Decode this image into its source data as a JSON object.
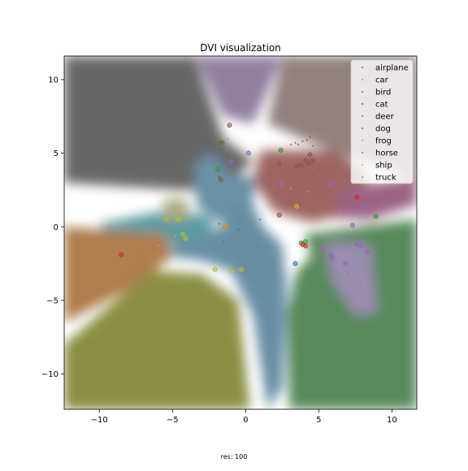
{
  "chart_data": {
    "type": "scatter",
    "title": "DVI visualization",
    "footer": "res: 100",
    "xlim": [
      -12.4,
      11.7
    ],
    "ylim": [
      -12.4,
      11.6
    ],
    "xticks": [
      -10,
      -5,
      0,
      5,
      10
    ],
    "yticks": [
      10,
      5,
      0,
      -5,
      -10
    ],
    "grid": false,
    "legend_position": "top-right",
    "series": [
      {
        "name": "airplane",
        "color": "#1f77b4",
        "points": [
          [
            1.0,
            0.5
          ],
          [
            -1.5,
            -1.0
          ],
          [
            -1.8,
            0.2
          ],
          [
            3.4,
            -2.5
          ],
          [
            -0.5,
            -0.2
          ]
        ],
        "highlighted": [
          [
            3.4,
            -2.5
          ]
        ]
      },
      {
        "name": "car",
        "color": "#ff7f0e",
        "points": [
          [
            -1.4,
            0.0
          ],
          [
            -0.6,
            -0.7
          ]
        ],
        "highlighted": [
          [
            -1.4,
            0.0
          ]
        ]
      },
      {
        "name": "bird",
        "color": "#2ca02c",
        "points": [
          [
            -1.6,
            5.7
          ],
          [
            -1.9,
            3.9
          ],
          [
            2.4,
            5.2
          ],
          [
            3.8,
            -1.1
          ],
          [
            4.1,
            -1.0
          ],
          [
            8.9,
            0.7
          ],
          [
            4.6,
            5.5
          ]
        ],
        "highlighted": [
          [
            -1.6,
            5.7
          ],
          [
            -1.9,
            3.9
          ],
          [
            2.4,
            5.2
          ],
          [
            3.8,
            -1.1
          ],
          [
            4.1,
            -1.0
          ],
          [
            8.9,
            0.7
          ]
        ]
      },
      {
        "name": "cat",
        "color": "#d62728",
        "points": [
          [
            -8.5,
            -1.9
          ],
          [
            7.6,
            2.0
          ],
          [
            3.9,
            -1.2
          ],
          [
            4.1,
            -1.3
          ],
          [
            3.7,
            1.5
          ],
          [
            -1.8,
            3.4
          ]
        ],
        "highlighted": [
          [
            -8.5,
            -1.9
          ],
          [
            7.6,
            2.0
          ],
          [
            3.9,
            -1.2
          ],
          [
            4.1,
            -1.3
          ]
        ]
      },
      {
        "name": "deer",
        "color": "#9467bd",
        "points": [
          [
            -1.0,
            4.4
          ],
          [
            0.2,
            5.0
          ],
          [
            2.5,
            2.9
          ],
          [
            5.8,
            2.9
          ],
          [
            7.3,
            0.1
          ],
          [
            8.2,
            1.4
          ],
          [
            5.2,
            -1.5
          ],
          [
            5.8,
            -1.9
          ],
          [
            5.9,
            -2.1
          ],
          [
            6.8,
            -2.5
          ],
          [
            7.6,
            -1.2
          ],
          [
            7.9,
            -1.3
          ],
          [
            8.3,
            -1.7
          ],
          [
            7.0,
            -3.2
          ],
          [
            7.5,
            -3.6
          ],
          [
            5.9,
            -2.9
          ]
        ],
        "highlighted": [
          [
            -1.0,
            4.4
          ],
          [
            0.2,
            5.0
          ],
          [
            2.5,
            2.9
          ],
          [
            5.8,
            2.9
          ],
          [
            7.3,
            0.1
          ],
          [
            8.2,
            1.4
          ],
          [
            5.2,
            -1.5
          ],
          [
            5.8,
            -1.9
          ],
          [
            5.9,
            -2.1
          ],
          [
            6.8,
            -2.5
          ],
          [
            7.6,
            -1.2
          ],
          [
            7.9,
            -1.3
          ],
          [
            8.3,
            -1.7
          ]
        ]
      },
      {
        "name": "dog",
        "color": "#8c564b",
        "points": [
          [
            -1.1,
            6.9
          ],
          [
            -1.7,
            5.7
          ],
          [
            -1.7,
            3.2
          ],
          [
            2.3,
            4.3
          ],
          [
            3.5,
            4.1
          ],
          [
            3.8,
            4.2
          ],
          [
            4.1,
            4.5
          ],
          [
            4.3,
            4.3
          ],
          [
            4.6,
            4.5
          ],
          [
            4.4,
            4.9
          ],
          [
            2.3,
            0.8
          ],
          [
            3.9,
            5.8
          ],
          [
            4.2,
            5.9
          ],
          [
            3.6,
            5.6
          ],
          [
            4.4,
            6.1
          ],
          [
            3.1,
            5.6
          ],
          [
            3.4,
            5.7
          ],
          [
            4.6,
            3.5
          ],
          [
            3.2,
            3.9
          ],
          [
            1.6,
            3.7
          ]
        ],
        "highlighted": [
          [
            -1.1,
            6.9
          ],
          [
            -1.7,
            5.7
          ],
          [
            -1.7,
            3.2
          ],
          [
            2.3,
            4.3
          ],
          [
            3.5,
            4.1
          ],
          [
            3.8,
            4.2
          ],
          [
            4.1,
            4.5
          ],
          [
            4.3,
            4.3
          ],
          [
            4.6,
            4.5
          ],
          [
            4.4,
            4.9
          ],
          [
            2.3,
            0.8
          ]
        ]
      },
      {
        "name": "frog",
        "color": "#e377c2",
        "points": [
          [
            -1.2,
            6.0
          ],
          [
            3.1,
            2.6
          ],
          [
            4.3,
            2.4
          ],
          [
            6.5,
            1.1
          ]
        ],
        "highlighted": []
      },
      {
        "name": "horse",
        "color": "#7f7f7f",
        "points": [
          [
            -2.0,
            6.3
          ],
          [
            -1.2,
            5.1
          ],
          [
            2.9,
            4.4
          ],
          [
            3.7,
            4.8
          ],
          [
            2.0,
            3.9
          ],
          [
            6.0,
            1.2
          ],
          [
            7.8,
            -3.8
          ],
          [
            -7.0,
            -1.5
          ],
          [
            -8.8,
            -0.5
          ],
          [
            0.7,
            -0.8
          ],
          [
            1.9,
            -2.4
          ],
          [
            5.4,
            -1.9
          ]
        ],
        "highlighted": []
      },
      {
        "name": "ship",
        "color": "#bcbd22",
        "points": [
          [
            -5.4,
            0.5
          ],
          [
            -4.6,
            0.5
          ],
          [
            -4.3,
            -0.5
          ],
          [
            -4.1,
            -0.8
          ],
          [
            -2.1,
            -2.9
          ],
          [
            -1.0,
            -3.0
          ],
          [
            -0.3,
            -2.9
          ],
          [
            3.5,
            1.4
          ],
          [
            -4.8,
            -0.6
          ],
          [
            -6.0,
            -1.3
          ]
        ],
        "highlighted": [
          [
            -5.4,
            0.5
          ],
          [
            -4.6,
            0.5
          ],
          [
            -4.3,
            -0.5
          ],
          [
            -4.1,
            -0.8
          ],
          [
            -2.1,
            -2.9
          ],
          [
            -1.0,
            -3.0
          ],
          [
            -0.3,
            -2.9
          ],
          [
            3.5,
            1.4
          ]
        ]
      },
      {
        "name": "truck",
        "color": "#17becf",
        "points": [
          [
            -3.9,
            -0.6
          ],
          [
            -2.9,
            -1.2
          ],
          [
            -4.2,
            -0.3
          ]
        ],
        "highlighted": []
      }
    ]
  }
}
